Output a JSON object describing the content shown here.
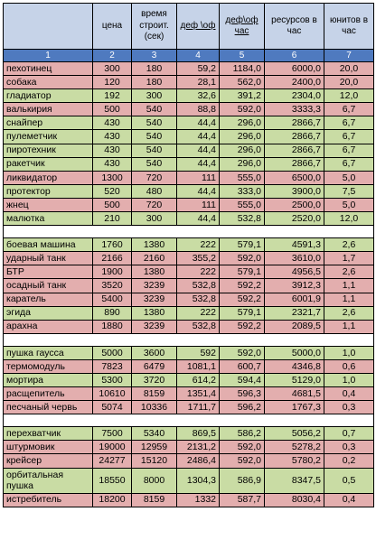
{
  "headers": [
    "",
    "цена",
    "время строит. (сек)",
    "деф \\оф",
    "деф\\оф час",
    "ресурсов в час",
    "юнитов в час"
  ],
  "indices": [
    "1",
    "2",
    "3",
    "4",
    "5",
    "6",
    "7"
  ],
  "groups": [
    {
      "rows": [
        {
          "name": "пехотинец",
          "cells": [
            "300",
            "180",
            "59,2",
            "1184,0",
            "6000,0",
            "20,0"
          ],
          "color": "pink"
        },
        {
          "name": "собака",
          "cells": [
            "120",
            "180",
            "28,1",
            "562,0",
            "2400,0",
            "20,0"
          ],
          "color": "pink"
        },
        {
          "name": "гладиатор",
          "cells": [
            "192",
            "300",
            "32,6",
            "391,2",
            "2304,0",
            "12,0"
          ],
          "color": "green"
        },
        {
          "name": "валькирия",
          "cells": [
            "500",
            "540",
            "88,8",
            "592,0",
            "3333,3",
            "6,7"
          ],
          "color": "pink"
        },
        {
          "name": "снайпер",
          "cells": [
            "430",
            "540",
            "44,4",
            "296,0",
            "2866,7",
            "6,7"
          ],
          "color": "green"
        },
        {
          "name": "пулеметчик",
          "cells": [
            "430",
            "540",
            "44,4",
            "296,0",
            "2866,7",
            "6,7"
          ],
          "color": "green"
        },
        {
          "name": "пиротехник",
          "cells": [
            "430",
            "540",
            "44,4",
            "296,0",
            "2866,7",
            "6,7"
          ],
          "color": "green"
        },
        {
          "name": "ракетчик",
          "cells": [
            "430",
            "540",
            "44,4",
            "296,0",
            "2866,7",
            "6,7"
          ],
          "color": "green"
        },
        {
          "name": "ликвидатор",
          "cells": [
            "1300",
            "720",
            "111",
            "555,0",
            "6500,0",
            "5,0"
          ],
          "color": "pink"
        },
        {
          "name": "протектор",
          "cells": [
            "520",
            "480",
            "44,4",
            "333,0",
            "3900,0",
            "7,5"
          ],
          "color": "green"
        },
        {
          "name": "жнец",
          "cells": [
            "500",
            "720",
            "111",
            "555,0",
            "2500,0",
            "5,0"
          ],
          "color": "pink"
        },
        {
          "name": "малютка",
          "cells": [
            "210",
            "300",
            "44,4",
            "532,8",
            "2520,0",
            "12,0"
          ],
          "color": "green"
        }
      ]
    },
    {
      "rows": [
        {
          "name": "боевая машина",
          "cells": [
            "1760",
            "1380",
            "222",
            "579,1",
            "4591,3",
            "2,6"
          ],
          "color": "green"
        },
        {
          "name": "ударный танк",
          "cells": [
            "2166",
            "2160",
            "355,2",
            "592,0",
            "3610,0",
            "1,7"
          ],
          "color": "pink"
        },
        {
          "name": "БТР",
          "cells": [
            "1900",
            "1380",
            "222",
            "579,1",
            "4956,5",
            "2,6"
          ],
          "color": "pink"
        },
        {
          "name": "осадный танк",
          "cells": [
            "3520",
            "3239",
            "532,8",
            "592,2",
            "3912,3",
            "1,1"
          ],
          "color": "pink"
        },
        {
          "name": "каратель",
          "cells": [
            "5400",
            "3239",
            "532,8",
            "592,2",
            "6001,9",
            "1,1"
          ],
          "color": "pink"
        },
        {
          "name": "эгида",
          "cells": [
            "890",
            "1380",
            "222",
            "579,1",
            "2321,7",
            "2,6"
          ],
          "color": "green"
        },
        {
          "name": "арахна",
          "cells": [
            "1880",
            "3239",
            "532,8",
            "592,2",
            "2089,5",
            "1,1"
          ],
          "color": "pink"
        }
      ]
    },
    {
      "rows": [
        {
          "name": "пушка гаусса",
          "cells": [
            "5000",
            "3600",
            "592",
            "592,0",
            "5000,0",
            "1,0"
          ],
          "color": "green"
        },
        {
          "name": "термомодуль",
          "cells": [
            "7823",
            "6479",
            "1081,1",
            "600,7",
            "4346,8",
            "0,6"
          ],
          "color": "pink"
        },
        {
          "name": "мортира",
          "cells": [
            "5300",
            "3720",
            "614,2",
            "594,4",
            "5129,0",
            "1,0"
          ],
          "color": "green"
        },
        {
          "name": "расщепитель",
          "cells": [
            "10610",
            "8159",
            "1351,4",
            "596,3",
            "4681,5",
            "0,4"
          ],
          "color": "pink"
        },
        {
          "name": "песчаный червь",
          "cells": [
            "5074",
            "10336",
            "1711,7",
            "596,2",
            "1767,3",
            "0,3"
          ],
          "color": "pink"
        }
      ]
    },
    {
      "rows": [
        {
          "name": "перехватчик",
          "cells": [
            "7500",
            "5340",
            "869,5",
            "586,2",
            "5056,2",
            "0,7"
          ],
          "color": "green"
        },
        {
          "name": "штурмовик",
          "cells": [
            "19000",
            "12959",
            "2131,2",
            "592,0",
            "5278,2",
            "0,3"
          ],
          "color": "pink"
        },
        {
          "name": "крейсер",
          "cells": [
            "24277",
            "15120",
            "2486,4",
            "592,0",
            "5780,2",
            "0,2"
          ],
          "color": "pink"
        },
        {
          "name": "орбитальная пушка",
          "cells": [
            "18550",
            "8000",
            "1304,3",
            "586,9",
            "8347,5",
            "0,5"
          ],
          "color": "green",
          "tall": true
        },
        {
          "name": "истребитель",
          "cells": [
            "18200",
            "8159",
            "1332",
            "587,7",
            "8030,4",
            "0,4"
          ],
          "color": "pink"
        }
      ]
    }
  ]
}
